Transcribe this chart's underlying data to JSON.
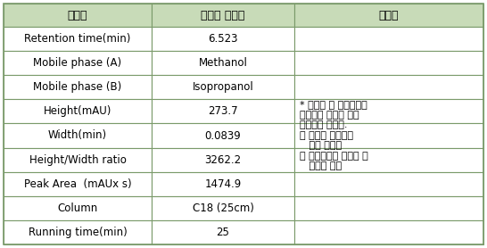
{
  "header": [
    "분석법",
    "확립된 분석법",
    "개선점"
  ],
  "rows": [
    [
      "Retention time(min)",
      "6.523"
    ],
    [
      "Mobile phase (A)",
      "Methanol"
    ],
    [
      "Mobile phase (B)",
      "Isopropanol"
    ],
    [
      "Height(mAU)",
      "273.7"
    ],
    [
      "Width(min)",
      "0.0839"
    ],
    [
      "Height/Width ratio",
      "3262.2"
    ],
    [
      "Peak Area  (mAUx s)",
      "1474.9"
    ],
    [
      "Column",
      "C18 (25cm)"
    ],
    [
      "Running time(min)",
      "25"
    ]
  ],
  "note_lines": [
    "* 이동상 및 분배조건을",
    "수정하여 다음과 같은",
    "개선점을 확보함.",
    "－ 우수한 분리능과",
    "   높은 회수율",
    "－ 분석방법의 안정화 및",
    "   재현성 향상"
  ],
  "header_bg": "#c8dbb8",
  "row_bg_even": "#ffffff",
  "row_bg_odd": "#ffffff",
  "border_color": "#7a9a6a",
  "text_color": "#000000",
  "header_fontsize": 9,
  "cell_fontsize": 8.5,
  "note_fontsize": 8
}
